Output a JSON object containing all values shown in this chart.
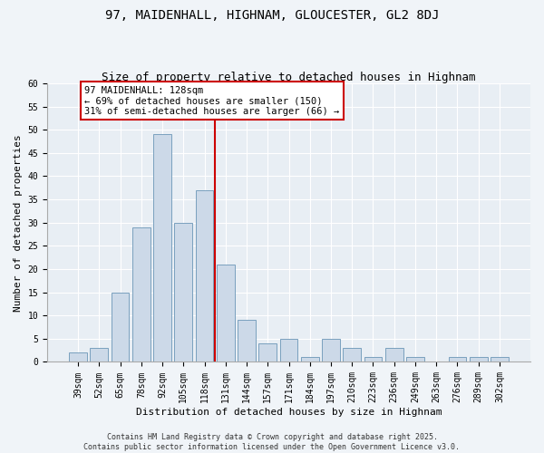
{
  "title": "97, MAIDENHALL, HIGHNAM, GLOUCESTER, GL2 8DJ",
  "subtitle": "Size of property relative to detached houses in Highnam",
  "xlabel": "Distribution of detached houses by size in Highnam",
  "ylabel": "Number of detached properties",
  "categories": [
    "39sqm",
    "52sqm",
    "65sqm",
    "78sqm",
    "92sqm",
    "105sqm",
    "118sqm",
    "131sqm",
    "144sqm",
    "157sqm",
    "171sqm",
    "184sqm",
    "197sqm",
    "210sqm",
    "223sqm",
    "236sqm",
    "249sqm",
    "263sqm",
    "276sqm",
    "289sqm",
    "302sqm"
  ],
  "values": [
    2,
    3,
    15,
    29,
    49,
    30,
    37,
    21,
    9,
    4,
    5,
    1,
    5,
    3,
    1,
    3,
    1,
    0,
    1,
    1,
    1
  ],
  "bar_color": "#ccd9e8",
  "bar_edge_color": "#7aa0be",
  "vline_color": "#cc0000",
  "vline_x": 6.5,
  "annotation_text": "97 MAIDENHALL: 128sqm\n← 69% of detached houses are smaller (150)\n31% of semi-detached houses are larger (66) →",
  "annotation_box_facecolor": "#ffffff",
  "annotation_box_edgecolor": "#cc0000",
  "ylim": [
    0,
    60
  ],
  "yticks": [
    0,
    5,
    10,
    15,
    20,
    25,
    30,
    35,
    40,
    45,
    50,
    55,
    60
  ],
  "bg_color": "#e8eef4",
  "fig_bg_color": "#f0f4f8",
  "footer": "Contains HM Land Registry data © Crown copyright and database right 2025.\nContains public sector information licensed under the Open Government Licence v3.0.",
  "title_fontsize": 10,
  "subtitle_fontsize": 9,
  "xlabel_fontsize": 8,
  "ylabel_fontsize": 8,
  "tick_fontsize": 7,
  "footer_fontsize": 6,
  "annot_fontsize": 7.5
}
